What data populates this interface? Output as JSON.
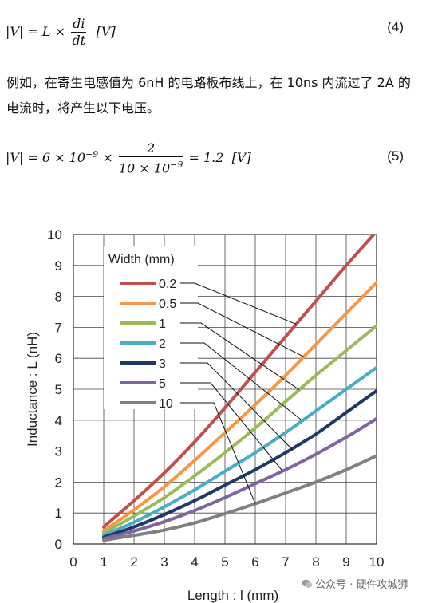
{
  "equations": {
    "eq4": {
      "lhs": "|V| = L ×",
      "num": "di",
      "den": "dt",
      "unit": "[V]",
      "number": "(4)"
    },
    "eq5": {
      "lhs": "|V| = 6 × 10",
      "exp1": "−9",
      "times": "×",
      "num": "2",
      "den_base": "10 × 10",
      "den_exp": "−9",
      "result": "= 1.2",
      "unit": "[V]",
      "number": "(5)"
    }
  },
  "paragraph": "例如，在寄生电感值为 6nH 的电路板布线上，在 10ns 内流过了 2A 的电流时，将产生以下电压。",
  "chart_data": {
    "type": "line",
    "xlabel": "Length : l (mm)",
    "ylabel": "Inductance : L (nH)",
    "xlim": [
      0,
      10
    ],
    "ylim": [
      0,
      10
    ],
    "x_ticks": [
      "0",
      "1",
      "2",
      "3",
      "4",
      "5",
      "6",
      "7",
      "8",
      "9",
      "10"
    ],
    "y_ticks": [
      "0",
      "1",
      "2",
      "3",
      "4",
      "5",
      "6",
      "7",
      "8",
      "9",
      "10"
    ],
    "grid": true,
    "legend_title": "Width (mm)",
    "legend_position": "top-left",
    "series": [
      {
        "name": "0.2",
        "color": "#c0504d",
        "x": [
          1,
          2,
          3,
          4,
          5,
          6,
          7,
          8,
          9,
          10
        ],
        "y": [
          0.55,
          1.4,
          2.3,
          3.3,
          4.4,
          5.55,
          6.7,
          7.85,
          9.0,
          10.1
        ]
      },
      {
        "name": "0.5",
        "color": "#f79646",
        "x": [
          1,
          2,
          3,
          4,
          5,
          6,
          7,
          8,
          9,
          10
        ],
        "y": [
          0.42,
          1.1,
          1.85,
          2.7,
          3.6,
          4.5,
          5.45,
          6.45,
          7.45,
          8.45
        ]
      },
      {
        "name": "1",
        "color": "#9bbb59",
        "x": [
          1,
          2,
          3,
          4,
          5,
          6,
          7,
          8,
          9,
          10
        ],
        "y": [
          0.35,
          0.9,
          1.5,
          2.2,
          2.95,
          3.75,
          4.6,
          5.45,
          6.25,
          7.05
        ]
      },
      {
        "name": "2",
        "color": "#4bacc6",
        "x": [
          1,
          2,
          3,
          4,
          5,
          6,
          7,
          8,
          9,
          10
        ],
        "y": [
          0.28,
          0.7,
          1.2,
          1.75,
          2.35,
          2.95,
          3.6,
          4.3,
          5.0,
          5.7
        ]
      },
      {
        "name": "3",
        "color": "#1f3864",
        "x": [
          1,
          2,
          3,
          4,
          5,
          6,
          7,
          8,
          9,
          10
        ],
        "y": [
          0.22,
          0.55,
          0.95,
          1.4,
          1.9,
          2.4,
          2.95,
          3.55,
          4.25,
          4.95
        ]
      },
      {
        "name": "5",
        "color": "#8064a2",
        "x": [
          1,
          2,
          3,
          4,
          5,
          6,
          7,
          8,
          9,
          10
        ],
        "y": [
          0.17,
          0.42,
          0.72,
          1.08,
          1.5,
          1.95,
          2.4,
          2.9,
          3.45,
          4.05
        ]
      },
      {
        "name": "10",
        "color": "#808080",
        "x": [
          1,
          2,
          3,
          4,
          5,
          6,
          7,
          8,
          9,
          10
        ],
        "y": [
          0.12,
          0.28,
          0.45,
          0.68,
          0.98,
          1.3,
          1.65,
          2.0,
          2.4,
          2.85
        ]
      }
    ]
  },
  "watermark": {
    "text": "公众号 · 硬件攻城狮",
    "icon": "wechat-icon"
  }
}
